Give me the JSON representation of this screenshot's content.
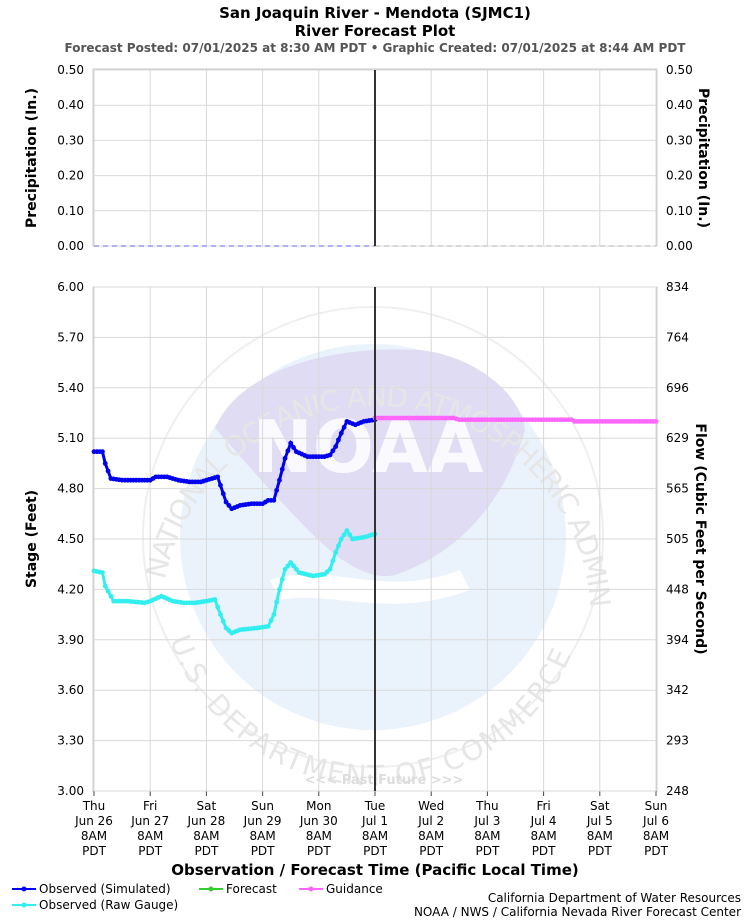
{
  "chart_data": {
    "type": "line",
    "title_line1": "San Joaquin River - Mendota (SJMC1)",
    "title_line2": "River Forecast Plot",
    "subtitle": "Forecast Posted: 07/01/2025 at 8:30 AM PDT  •  Graphic Created: 07/01/2025 at 8:44 AM PDT",
    "watermark": "<<< Past   Future >>>",
    "xlabel": "Observation / Forecast Time (Pacific Local Time)",
    "x_ticks": [
      [
        "Thu",
        "Jun 26",
        "8AM",
        "PDT"
      ],
      [
        "Fri",
        "Jun 27",
        "8AM",
        "PDT"
      ],
      [
        "Sat",
        "Jun 28",
        "8AM",
        "PDT"
      ],
      [
        "Sun",
        "Jun 29",
        "8AM",
        "PDT"
      ],
      [
        "Mon",
        "Jun 30",
        "8AM",
        "PDT"
      ],
      [
        "Tue",
        "Jul 1",
        "8AM",
        "PDT"
      ],
      [
        "Wed",
        "Jul 2",
        "8AM",
        "PDT"
      ],
      [
        "Thu",
        "Jul 3",
        "8AM",
        "PDT"
      ],
      [
        "Fri",
        "Jul 4",
        "8AM",
        "PDT"
      ],
      [
        "Sat",
        "Jul 5",
        "8AM",
        "PDT"
      ],
      [
        "Sun",
        "Jul 6",
        "8AM",
        "PDT"
      ]
    ],
    "x_unit": "days after Thu Jun 26 8AM PDT",
    "now_x": 5,
    "precip_panel": {
      "ylabel_left": "Precipitation (In.)",
      "ylabel_right": "Precipitation (In.)",
      "ylim": [
        0,
        0.5
      ],
      "yticks": [
        "0.00",
        "0.10",
        "0.20",
        "0.30",
        "0.40",
        "0.50"
      ],
      "series": [
        {
          "name": "",
          "color": "#9999ee",
          "points": [
            [
              0,
              0
            ],
            [
              5,
              0
            ]
          ]
        },
        {
          "name": "",
          "color": "#cccccc",
          "points": [
            [
              5,
              0
            ],
            [
              10,
              0
            ]
          ]
        }
      ]
    },
    "stage_panel": {
      "ylabel_left": "Stage (Feet)",
      "ylabel_right": "Flow (Cubic Feet per Second)",
      "ylim": [
        3.0,
        6.0
      ],
      "yticks": [
        "3.00",
        "3.30",
        "3.60",
        "3.90",
        "4.20",
        "4.50",
        "4.80",
        "5.10",
        "5.40",
        "5.70",
        "6.00"
      ],
      "yticks_right": [
        "248",
        "293",
        "342",
        "394",
        "448",
        "505",
        "565",
        "629",
        "696",
        "764",
        "834"
      ],
      "series": [
        {
          "name": "Observed (Simulated)",
          "color": "#0000ee",
          "points": [
            [
              0,
              5.02
            ],
            [
              0.15,
              5.02
            ],
            [
              0.2,
              4.95
            ],
            [
              0.3,
              4.86
            ],
            [
              0.5,
              4.85
            ],
            [
              0.7,
              4.85
            ],
            [
              1.0,
              4.85
            ],
            [
              1.1,
              4.87
            ],
            [
              1.3,
              4.87
            ],
            [
              1.5,
              4.85
            ],
            [
              1.7,
              4.84
            ],
            [
              1.9,
              4.84
            ],
            [
              2.1,
              4.86
            ],
            [
              2.2,
              4.87
            ],
            [
              2.25,
              4.82
            ],
            [
              2.35,
              4.72
            ],
            [
              2.45,
              4.68
            ],
            [
              2.6,
              4.7
            ],
            [
              2.8,
              4.71
            ],
            [
              3.0,
              4.71
            ],
            [
              3.1,
              4.73
            ],
            [
              3.2,
              4.73
            ],
            [
              3.3,
              4.85
            ],
            [
              3.4,
              4.98
            ],
            [
              3.5,
              5.07
            ],
            [
              3.6,
              5.02
            ],
            [
              3.8,
              4.99
            ],
            [
              4.1,
              4.99
            ],
            [
              4.2,
              5.0
            ],
            [
              4.3,
              5.05
            ],
            [
              4.4,
              5.13
            ],
            [
              4.5,
              5.2
            ],
            [
              4.65,
              5.18
            ],
            [
              4.8,
              5.2
            ],
            [
              5.0,
              5.21
            ]
          ]
        },
        {
          "name": "Observed (Raw Gauge)",
          "color": "#33eeee",
          "points": [
            [
              0,
              4.31
            ],
            [
              0.15,
              4.3
            ],
            [
              0.2,
              4.22
            ],
            [
              0.35,
              4.13
            ],
            [
              0.6,
              4.13
            ],
            [
              0.9,
              4.12
            ],
            [
              1.0,
              4.13
            ],
            [
              1.2,
              4.16
            ],
            [
              1.4,
              4.13
            ],
            [
              1.6,
              4.12
            ],
            [
              1.8,
              4.12
            ],
            [
              2.0,
              4.13
            ],
            [
              2.15,
              4.14
            ],
            [
              2.25,
              4.05
            ],
            [
              2.35,
              3.97
            ],
            [
              2.45,
              3.94
            ],
            [
              2.6,
              3.96
            ],
            [
              2.9,
              3.97
            ],
            [
              3.1,
              3.98
            ],
            [
              3.2,
              4.05
            ],
            [
              3.3,
              4.2
            ],
            [
              3.4,
              4.32
            ],
            [
              3.5,
              4.36
            ],
            [
              3.65,
              4.3
            ],
            [
              3.9,
              4.28
            ],
            [
              4.1,
              4.29
            ],
            [
              4.2,
              4.32
            ],
            [
              4.3,
              4.42
            ],
            [
              4.4,
              4.5
            ],
            [
              4.5,
              4.55
            ],
            [
              4.6,
              4.5
            ],
            [
              4.8,
              4.51
            ],
            [
              5.0,
              4.53
            ]
          ]
        },
        {
          "name": "Forecast",
          "color": "#33cc33",
          "points": []
        },
        {
          "name": "Guidance",
          "color": "#ff66ff",
          "points": [
            [
              5.0,
              5.22
            ],
            [
              5.5,
              5.22
            ],
            [
              6.0,
              5.22
            ],
            [
              6.4,
              5.22
            ],
            [
              6.5,
              5.21
            ],
            [
              7.0,
              5.21
            ],
            [
              7.5,
              5.21
            ],
            [
              8.0,
              5.21
            ],
            [
              8.5,
              5.21
            ],
            [
              8.55,
              5.2
            ],
            [
              9.0,
              5.2
            ],
            [
              9.5,
              5.2
            ],
            [
              10.0,
              5.2
            ]
          ]
        }
      ]
    },
    "legend": [
      {
        "label": "Observed (Simulated)",
        "color": "#0000ee"
      },
      {
        "label": "Observed (Raw Gauge)",
        "color": "#33eeee"
      },
      {
        "label": "Forecast",
        "color": "#33cc33"
      },
      {
        "label": "Guidance",
        "color": "#ff66ff"
      }
    ],
    "credits": [
      "California Department of Water Resources",
      "NOAA / NWS / California Nevada River Forecast Center"
    ]
  }
}
